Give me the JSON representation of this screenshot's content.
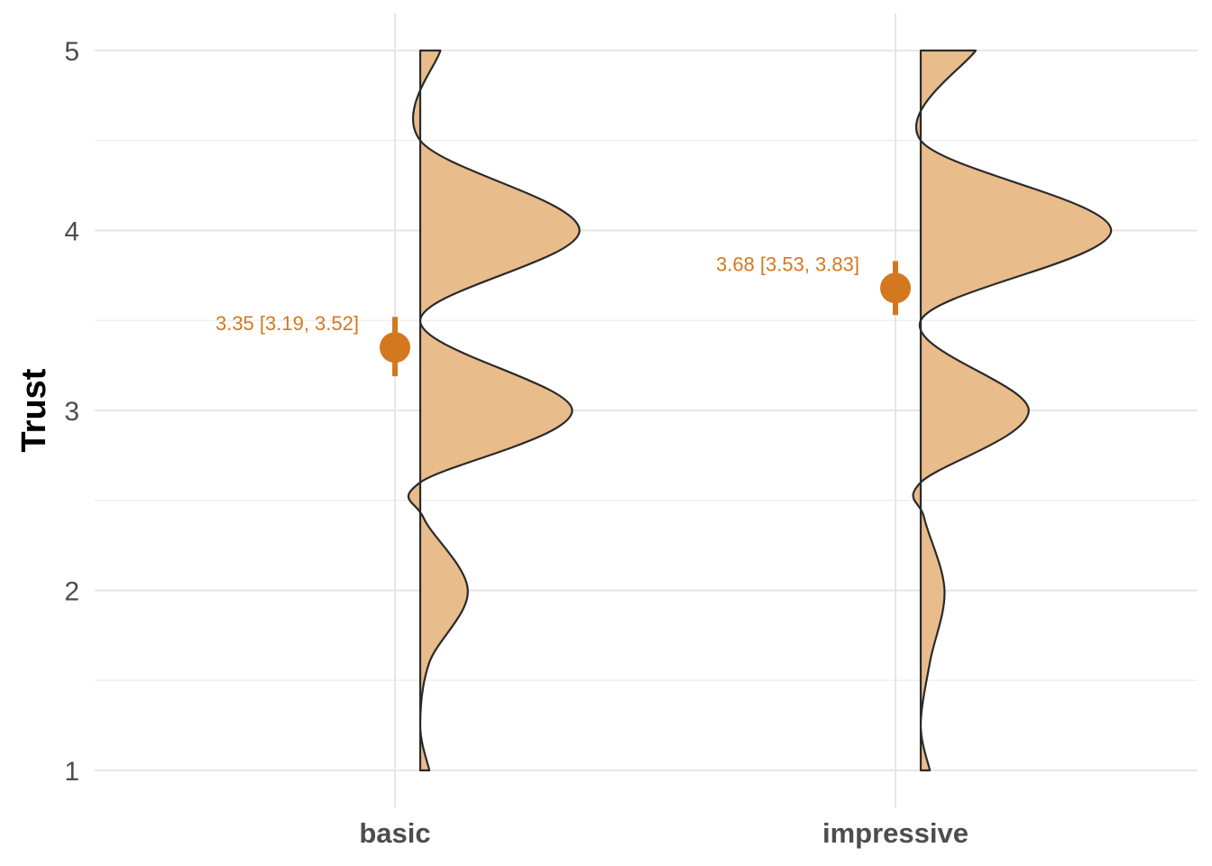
{
  "chart_data": {
    "type": "violin",
    "ylabel": "Trust",
    "xlabel": "",
    "ylim": [
      1,
      5
    ],
    "yticks": [
      "1",
      "2",
      "3",
      "4",
      "5"
    ],
    "grid": true,
    "accent_color": "#d4781f",
    "fill_color": "#e9bc8c",
    "categories": [
      "basic",
      "impressive"
    ],
    "groups": [
      {
        "category": "basic",
        "mean": 3.35,
        "ci": [
          3.19,
          3.52
        ],
        "label": "3.35 [3.19, 3.52]",
        "density": [
          {
            "y": 1.0,
            "w": 0.05
          },
          {
            "y": 1.25,
            "w": 0.0
          },
          {
            "y": 1.6,
            "w": 0.05
          },
          {
            "y": 2.0,
            "w": 0.26
          },
          {
            "y": 2.4,
            "w": 0.02
          },
          {
            "y": 2.6,
            "w": 0.0
          },
          {
            "y": 3.0,
            "w": 0.83
          },
          {
            "y": 3.5,
            "w": 0.0
          },
          {
            "y": 4.0,
            "w": 0.87
          },
          {
            "y": 4.5,
            "w": 0.0
          },
          {
            "y": 5.0,
            "w": 0.11
          }
        ]
      },
      {
        "category": "impressive",
        "mean": 3.68,
        "ci": [
          3.53,
          3.83
        ],
        "label": "3.68 [3.53, 3.83]",
        "density": [
          {
            "y": 1.0,
            "w": 0.05
          },
          {
            "y": 1.25,
            "w": 0.0
          },
          {
            "y": 1.6,
            "w": 0.05
          },
          {
            "y": 2.0,
            "w": 0.13
          },
          {
            "y": 2.4,
            "w": 0.02
          },
          {
            "y": 2.6,
            "w": 0.0
          },
          {
            "y": 3.0,
            "w": 0.59
          },
          {
            "y": 3.5,
            "w": 0.0
          },
          {
            "y": 4.0,
            "w": 1.04
          },
          {
            "y": 4.5,
            "w": 0.0
          },
          {
            "y": 5.0,
            "w": 0.3
          }
        ]
      }
    ]
  }
}
